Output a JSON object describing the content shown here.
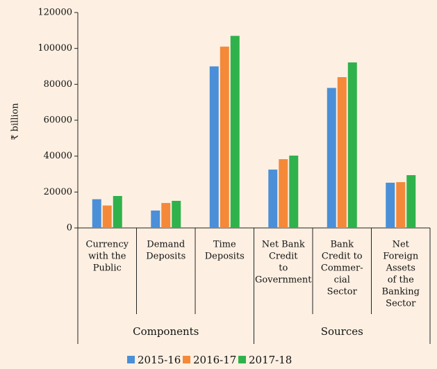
{
  "chart_data": {
    "type": "bar",
    "y_label": "₹ billion",
    "categories": [
      [
        "Currency",
        "with the",
        "Public"
      ],
      [
        "Demand",
        "Deposits"
      ],
      [
        "Time",
        "Deposits"
      ],
      [
        "Net Bank",
        "Credit",
        "to",
        "Government"
      ],
      [
        "Bank",
        "Credit to",
        "Commer-",
        "cial",
        "Sector"
      ],
      [
        "Net",
        "Foreign",
        "Assets",
        "of the",
        "Banking",
        "Sector"
      ]
    ],
    "groups": [
      "Components",
      "Sources"
    ],
    "series": [
      {
        "name": "2015-16",
        "color": "#4a8fd8",
        "values": [
          16000,
          9700,
          90000,
          32500,
          78000,
          25200
        ]
      },
      {
        "name": "2016-17",
        "color": "#f4893a",
        "values": [
          12500,
          13900,
          101000,
          38300,
          84000,
          25500
        ]
      },
      {
        "name": "2017-18",
        "color": "#2fb24b",
        "values": [
          17800,
          15100,
          107000,
          40300,
          92200,
          29400
        ]
      }
    ],
    "ylim": [
      0,
      120000
    ],
    "yticks": [
      0,
      20000,
      40000,
      60000,
      80000,
      100000,
      120000
    ]
  }
}
